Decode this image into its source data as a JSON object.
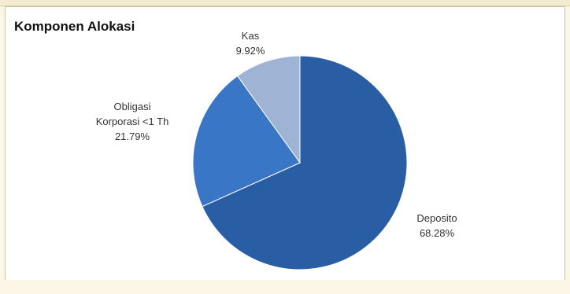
{
  "chart_data": {
    "type": "pie",
    "title": "Komponen Alokasi",
    "slices": [
      {
        "name": "Deposito",
        "value": 68.28,
        "label": "68.28%",
        "color": "#2a5ea4"
      },
      {
        "name": "Obligasi Korporasi <1 Th",
        "name_lines": [
          "Obligasi",
          "Korporasi <1 Th"
        ],
        "value": 21.79,
        "label": "21.79%",
        "color": "#3a76c6"
      },
      {
        "name": "Kas",
        "value": 9.92,
        "label": "9.92%",
        "color": "#9fb3d5"
      }
    ],
    "start_angle_deg": 0,
    "direction": "clockwise"
  }
}
